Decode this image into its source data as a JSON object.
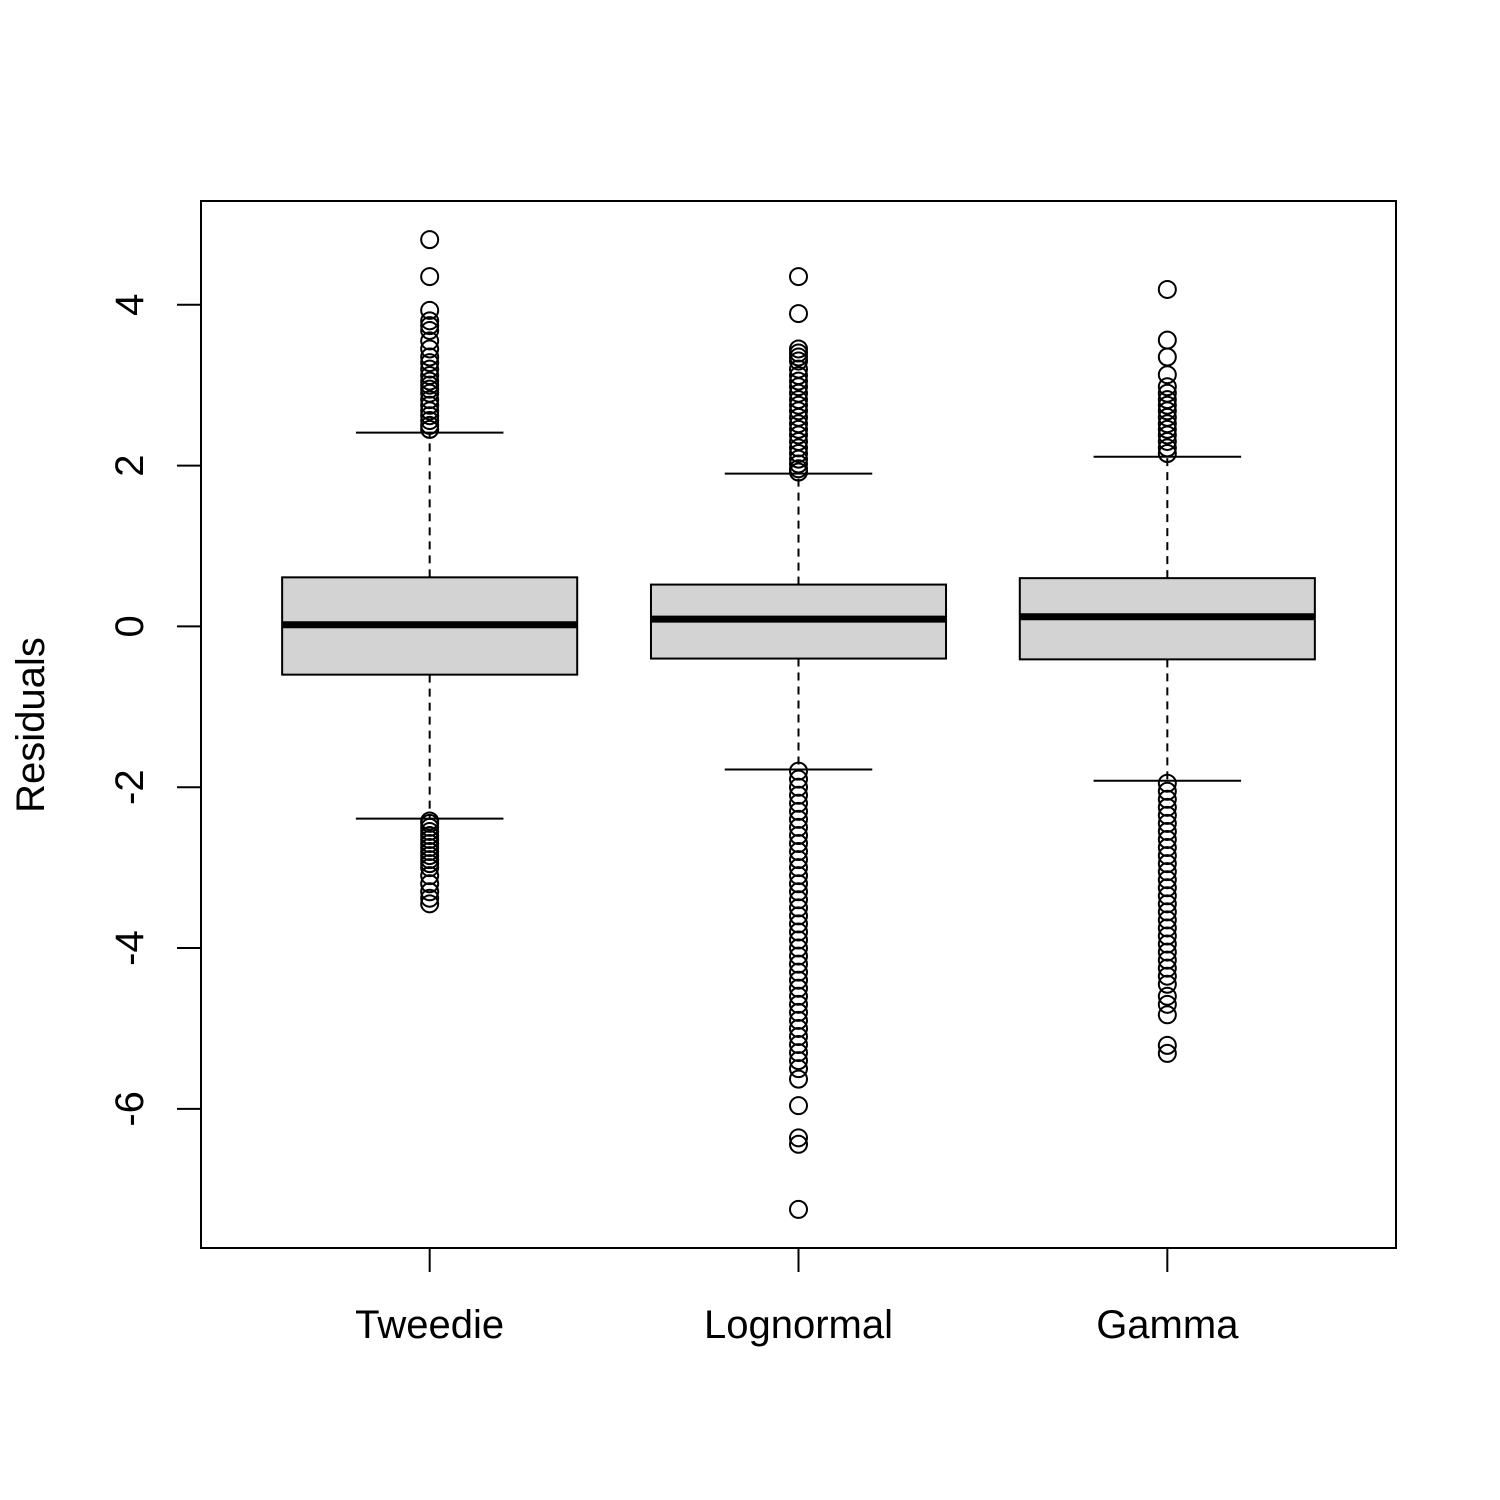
{
  "chart_data": {
    "type": "boxplot",
    "title": "",
    "xlabel": "",
    "ylabel": "Residuals",
    "ylim": [
      -7.73,
      5.29
    ],
    "yticks": [
      -6,
      -4,
      -2,
      0,
      2,
      4
    ],
    "ytick_labels": [
      "-6",
      "-4",
      "-2",
      "0",
      "2",
      "4"
    ],
    "grid": false,
    "box_fill": "#d3d3d3",
    "categories": [
      "Tweedie",
      "Lognormal",
      "Gamma"
    ],
    "series": [
      {
        "name": "Tweedie",
        "whisker_low": -2.39,
        "q1": -0.6,
        "median": 0.02,
        "q3": 0.61,
        "whisker_high": 2.41,
        "outliers": [
          4.81,
          4.35,
          3.93,
          3.8,
          3.74,
          3.68,
          3.55,
          3.45,
          3.35,
          3.28,
          3.2,
          3.12,
          3.05,
          3.0,
          2.95,
          2.9,
          2.82,
          2.75,
          2.68,
          2.62,
          2.56,
          2.5,
          2.45,
          -2.42,
          -2.45,
          -2.5,
          -2.55,
          -2.6,
          -2.65,
          -2.7,
          -2.75,
          -2.8,
          -2.85,
          -2.9,
          -2.95,
          -3.0,
          -3.1,
          -3.2,
          -3.3,
          -3.38,
          -3.45
        ]
      },
      {
        "name": "Lognormal",
        "whisker_low": -1.78,
        "q1": -0.4,
        "median": 0.09,
        "q3": 0.52,
        "whisker_high": 1.9,
        "outliers": [
          4.35,
          3.89,
          3.45,
          3.4,
          3.35,
          3.3,
          3.2,
          3.12,
          3.05,
          2.98,
          2.9,
          2.82,
          2.75,
          2.68,
          2.6,
          2.52,
          2.45,
          2.38,
          2.3,
          2.22,
          2.15,
          2.08,
          2.02,
          1.96,
          1.92,
          -1.8,
          -1.9,
          -2.0,
          -2.1,
          -2.2,
          -2.3,
          -2.4,
          -2.5,
          -2.6,
          -2.7,
          -2.8,
          -2.9,
          -3.0,
          -3.1,
          -3.2,
          -3.3,
          -3.4,
          -3.5,
          -3.6,
          -3.7,
          -3.8,
          -3.9,
          -4.0,
          -4.1,
          -4.2,
          -4.3,
          -4.4,
          -4.5,
          -4.6,
          -4.7,
          -4.8,
          -4.9,
          -5.0,
          -5.1,
          -5.2,
          -5.3,
          -5.4,
          -5.5,
          -5.63,
          -5.96,
          -6.36,
          -6.44,
          -7.25
        ]
      },
      {
        "name": "Gamma",
        "whisker_low": -1.92,
        "q1": -0.41,
        "median": 0.12,
        "q3": 0.6,
        "whisker_high": 2.11,
        "outliers": [
          4.19,
          3.56,
          3.35,
          3.13,
          2.98,
          2.9,
          2.82,
          2.75,
          2.68,
          2.6,
          2.52,
          2.45,
          2.38,
          2.3,
          2.22,
          2.15,
          -1.95,
          -2.05,
          -2.15,
          -2.25,
          -2.35,
          -2.45,
          -2.55,
          -2.65,
          -2.75,
          -2.85,
          -2.95,
          -3.05,
          -3.15,
          -3.25,
          -3.35,
          -3.45,
          -3.55,
          -3.65,
          -3.75,
          -3.85,
          -3.95,
          -4.05,
          -4.15,
          -4.25,
          -4.35,
          -4.45,
          -4.6,
          -4.7,
          -4.83,
          -5.21,
          -5.31
        ]
      }
    ]
  }
}
